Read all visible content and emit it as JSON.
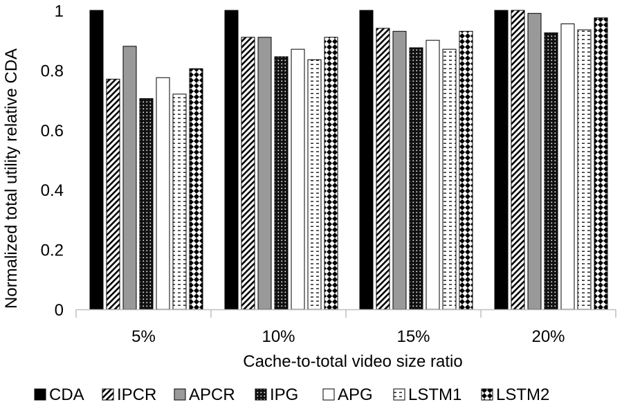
{
  "chart_data": {
    "type": "bar",
    "title": "",
    "xlabel": "Cache-to-total video size ratio",
    "ylabel": "Normalized total utility relative CDA",
    "ylim": [
      0,
      1
    ],
    "yticks": [
      "0",
      "0.2",
      "0.4",
      "0.6",
      "0.8",
      "1"
    ],
    "categories": [
      "5%",
      "10%",
      "15%",
      "20%"
    ],
    "legend_position": "bottom",
    "grid": false,
    "series": [
      {
        "name": "CDA",
        "pattern": "solid-black",
        "values": [
          1.0,
          1.0,
          1.0,
          1.0
        ]
      },
      {
        "name": "IPCR",
        "pattern": "diagonal",
        "values": [
          0.77,
          0.91,
          0.94,
          1.0
        ]
      },
      {
        "name": "APCR",
        "pattern": "solid-gray",
        "values": [
          0.88,
          0.91,
          0.93,
          0.99
        ]
      },
      {
        "name": "IPG",
        "pattern": "dark-dots",
        "values": [
          0.705,
          0.845,
          0.875,
          0.925
        ]
      },
      {
        "name": "APG",
        "pattern": "white",
        "values": [
          0.775,
          0.87,
          0.9,
          0.955
        ]
      },
      {
        "name": "LSTM1",
        "pattern": "dashes",
        "values": [
          0.72,
          0.835,
          0.87,
          0.935
        ]
      },
      {
        "name": "LSTM2",
        "pattern": "diamonds",
        "values": [
          0.805,
          0.91,
          0.93,
          0.975
        ]
      }
    ]
  }
}
